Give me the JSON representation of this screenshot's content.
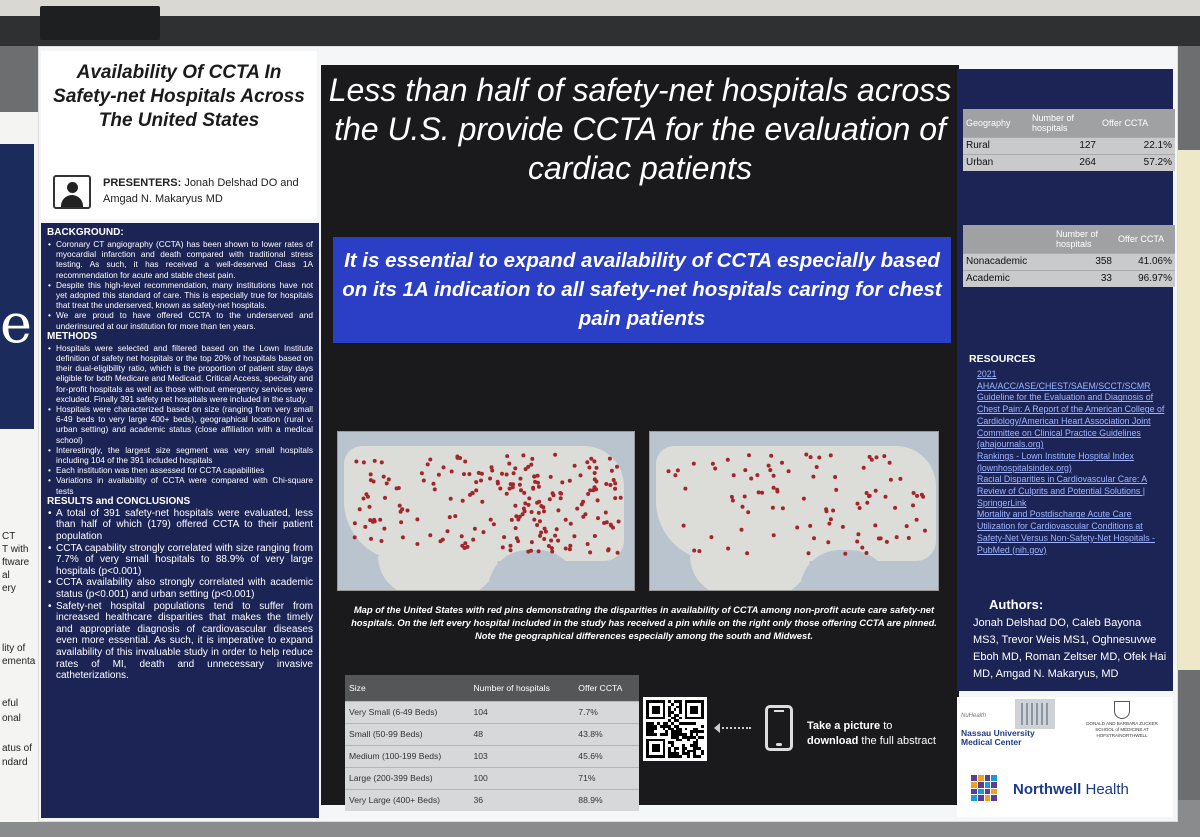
{
  "title": "Availability Of CCTA In Safety-net Hospitals Across The United States",
  "presenters": {
    "label": "PRESENTERS:",
    "names": "Jonah Delshad DO and Amgad N. Makaryus MD"
  },
  "background": {
    "heading": "BACKGROUND:",
    "items": [
      "Coronary CT angiography (CCTA) has been shown to lower rates of myocardial infarction and death compared with traditional stress testing. As such, it has received a well-deserved Class 1A recommendation for acute and stable chest pain.",
      "Despite this high-level recommendation, many institutions have not yet adopted this standard of care. This is especially true for hospitals that treat the underserved, known as safety-net hospitals.",
      "We are proud to have offered CCTA to the underserved and underinsured at our institution for more than ten years."
    ]
  },
  "methods": {
    "heading": "METHODS",
    "items": [
      "Hospitals were selected and filtered based on the Lown Institute definition of safety net hospitals or the top 20% of hospitals based on their dual-eligibility ratio, which is the proportion of patient stay days eligible for both Medicare and Medicaid. Critical Access, specialty and for-profit hospitals as well as those without emergency services were excluded. Finally 391 safety net hospitals were included in the study.",
      "Hospitals were characterized based on size (ranging from very small 6-49 beds to very large 400+ beds), geographical location (rural v. urban setting) and academic status (close affiliation with a medical school)",
      "Interestingly, the largest size segment was very small hospitals including 104 of the 391 included hospitals",
      "Each institution was then assessed for CCTA capabilities",
      "Variations in availability of CCTA were compared with Chi-square tests"
    ]
  },
  "results": {
    "heading": "RESULTS and CONCLUSIONS",
    "items": [
      "A total of 391 safety-net hospitals were evaluated, less than half of which (179) offered CCTA to their patient population",
      "CCTA capability strongly correlated with size ranging from 7.7% of very small hospitals to 88.9% of very large hospitals (p<0.001)",
      "CCTA availability also strongly correlated with academic status (p<0.001) and urban setting (p<0.001)",
      "Safety-net hospital populations tend to suffer from increased healthcare disparities that makes the timely and appropriate diagnosis of cardiovascular diseases even more essential. As such, it is imperative to expand availability of this invaluable study in order to help reduce rates of MI, death and unnecessary invasive catheterizations."
    ]
  },
  "headline": "Less than half of safety-net hospitals across the U.S. provide CCTA for the evaluation of cardiac patients",
  "banner": "It is essential to expand availability of CCTA especially based on its 1A indication to all safety-net hospitals caring for chest pain patients",
  "map_caption": "Map of the United States with red pins demonstrating the disparities in availability of CCTA among non-profit acute care safety-net hospitals. On the left every hospital included in the study has received a pin while on the right only those offering CCTA are pinned. Note the geographical differences especially among the south and Midwest.",
  "size_table": {
    "headers": [
      "Size",
      "Number of hospitals",
      "Offer CCTA"
    ],
    "rows": [
      [
        "Very Small (6-49 Beds)",
        "104",
        "7.7%"
      ],
      [
        "Small (50-99 Beds)",
        "48",
        "43.8%"
      ],
      [
        "Medium (100-199 Beds)",
        "103",
        "45.6%"
      ],
      [
        "Large (200-399 Beds)",
        "100",
        "71%"
      ],
      [
        "Very Large (400+ Beds)",
        "36",
        "88.9%"
      ]
    ]
  },
  "take_picture": {
    "bold1": "Take a picture",
    "text1": " to",
    "bold2": "download",
    "text2": " the full abstract"
  },
  "geography_table": {
    "headers": [
      "Geography",
      "Number of hospitals",
      "Offer CCTA"
    ],
    "rows": [
      [
        "Rural",
        "127",
        "22.1%"
      ],
      [
        "Urban",
        "264",
        "57.2%"
      ]
    ]
  },
  "academic_table": {
    "headers": [
      "",
      "Number of hospitals",
      "Offer CCTA"
    ],
    "rows": [
      [
        "Nonacademic",
        "358",
        "41.06%"
      ],
      [
        "Academic",
        "33",
        "96.97%"
      ]
    ]
  },
  "resources": {
    "heading": "RESOURCES",
    "items": [
      "2021 AHA/ACC/ASE/CHEST/SAEM/SCCT/SCMR Guideline for the Evaluation and Diagnosis of Chest Pain: A Report of the American College of Cardiology/American Heart Association Joint Committee on Clinical Practice Guidelines (ahajournals.org)",
      "Rankings - Lown Institute Hospital Index (lownhospitalsindex.org)",
      "Racial Disparities in Cardiovascular Care: A Review of Culprits and Potential Solutions | SpringerLink",
      "Mortality and Postdischarge Acute Care Utilization for Cardiovascular Conditions at Safety-Net Versus Non-Safety-Net Hospitals - PubMed (nih.gov)"
    ]
  },
  "authors": {
    "heading": "Authors:",
    "names": "Jonah Delshad DO, Caleb Bayona MS3, Trevor Weis MS1, Oghnesuvwe Eboh MD, Roman Zeltser MD, Ofek Hai MD, Amgad N. Makaryus, MD"
  },
  "logos": {
    "nassau_health": "NuHealth",
    "nassau": "Nassau University Medical Center",
    "zucker": "DONALD AND BARBARA ZUCKER SCHOOL of MEDICINE AT HOFSTRA/NORTHWELL",
    "northwell_bold": "Northwell",
    "northwell_rest": " Health"
  },
  "left_fragments": [
    "CT",
    "T with",
    "ftware",
    "al",
    "ery",
    "lity of",
    "ementa",
    "eful",
    "onal",
    "atus of",
    "ndard"
  ],
  "colors": {
    "navy": "#1c2455",
    "banner_blue": "#2b3ec6",
    "pin_red": "#a3262a",
    "black_panel": "#1a1a1c"
  }
}
